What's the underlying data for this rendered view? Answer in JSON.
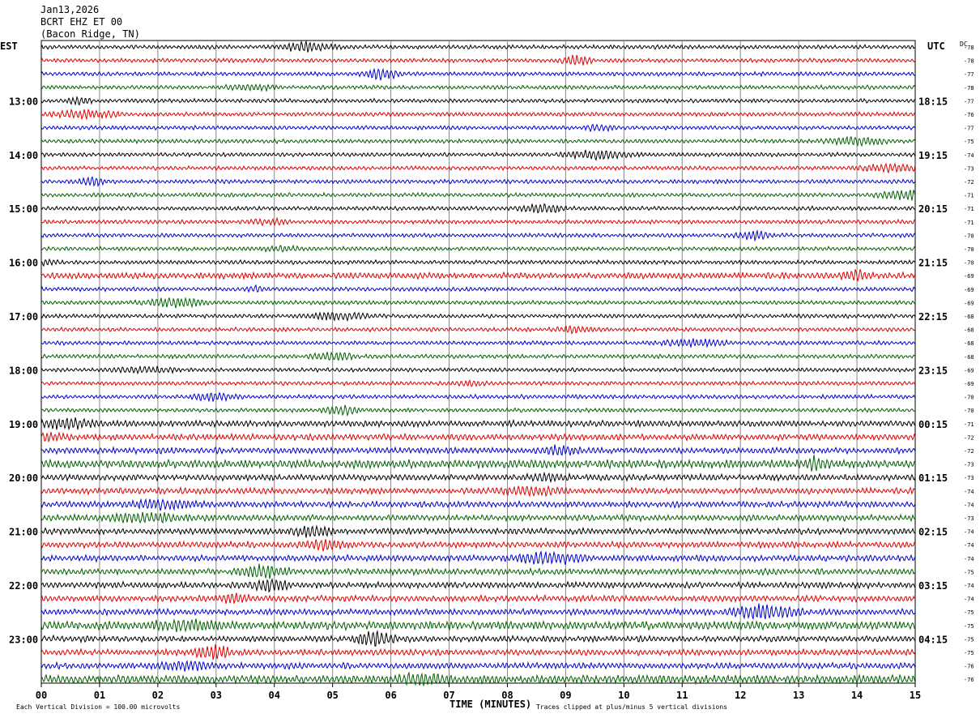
{
  "header": {
    "date": "Jan13,2026",
    "station": "BCRT EHZ ET 00",
    "location": "(Bacon Ridge, TN)"
  },
  "axis": {
    "left_tz": "EST",
    "right_tz": "UTC",
    "dc_label": "DC",
    "xlabel": "TIME (MINUTES)",
    "footer_left": "Each Vertical Division =  100.00 microvolts",
    "footer_right": "Traces clipped at plus/minus 5 vertical divisions"
  },
  "colors": {
    "black": "#000000",
    "red": "#e00000",
    "blue": "#0000d0",
    "green": "#006000",
    "grid": "#888888"
  },
  "chart_data": {
    "type": "line",
    "title": "BCRT EHZ ET 00 (Bacon Ridge, TN) Jan13,2026",
    "xlabel": "TIME (MINUTES)",
    "xlim": [
      0,
      15
    ],
    "x_ticks": [
      "00",
      "01",
      "02",
      "03",
      "04",
      "05",
      "06",
      "07",
      "08",
      "09",
      "10",
      "11",
      "12",
      "13",
      "14",
      "15"
    ],
    "trace_count": 48,
    "trace_colors": [
      "black",
      "red",
      "blue",
      "green"
    ],
    "left_hour_labels": [
      {
        "trace": 4,
        "label": "13:00"
      },
      {
        "trace": 8,
        "label": "14:00"
      },
      {
        "trace": 12,
        "label": "15:00"
      },
      {
        "trace": 16,
        "label": "16:00"
      },
      {
        "trace": 20,
        "label": "17:00"
      },
      {
        "trace": 24,
        "label": "18:00"
      },
      {
        "trace": 28,
        "label": "19:00"
      },
      {
        "trace": 32,
        "label": "20:00"
      },
      {
        "trace": 36,
        "label": "21:00"
      },
      {
        "trace": 40,
        "label": "22:00"
      },
      {
        "trace": 44,
        "label": "23:00"
      }
    ],
    "right_hour_labels": [
      {
        "trace": 4,
        "label": "18:15"
      },
      {
        "trace": 8,
        "label": "19:15"
      },
      {
        "trace": 12,
        "label": "20:15"
      },
      {
        "trace": 16,
        "label": "21:15"
      },
      {
        "trace": 20,
        "label": "22:15"
      },
      {
        "trace": 24,
        "label": "23:15"
      },
      {
        "trace": 28,
        "label": "00:15"
      },
      {
        "trace": 32,
        "label": "01:15"
      },
      {
        "trace": 36,
        "label": "02:15"
      },
      {
        "trace": 40,
        "label": "03:15"
      },
      {
        "trace": 44,
        "label": "04:15"
      }
    ],
    "dc_offsets": [
      -78,
      -78,
      -77,
      -78,
      -77,
      -76,
      -77,
      -75,
      -74,
      -73,
      -72,
      -71,
      -71,
      -71,
      -70,
      -70,
      -70,
      -69,
      -69,
      -69,
      -68,
      -68,
      -68,
      -68,
      -69,
      -69,
      -70,
      -70,
      -71,
      -72,
      -72,
      -73,
      -73,
      -74,
      -74,
      -73,
      -74,
      -74,
      -74,
      -75,
      -74,
      -74,
      -75,
      -75,
      -75,
      -75,
      -76,
      -76
    ],
    "trace_amplitude": [
      2,
      2,
      2,
      2,
      2,
      2,
      2,
      2,
      2,
      2,
      2,
      2,
      2,
      2,
      2,
      2,
      2,
      3,
      2,
      2,
      2,
      2,
      2,
      2,
      2,
      2,
      2,
      2,
      3,
      3,
      3,
      4,
      3,
      3,
      3,
      3,
      3,
      3,
      3,
      3,
      3,
      3,
      3,
      4,
      3,
      3,
      3,
      4
    ]
  }
}
